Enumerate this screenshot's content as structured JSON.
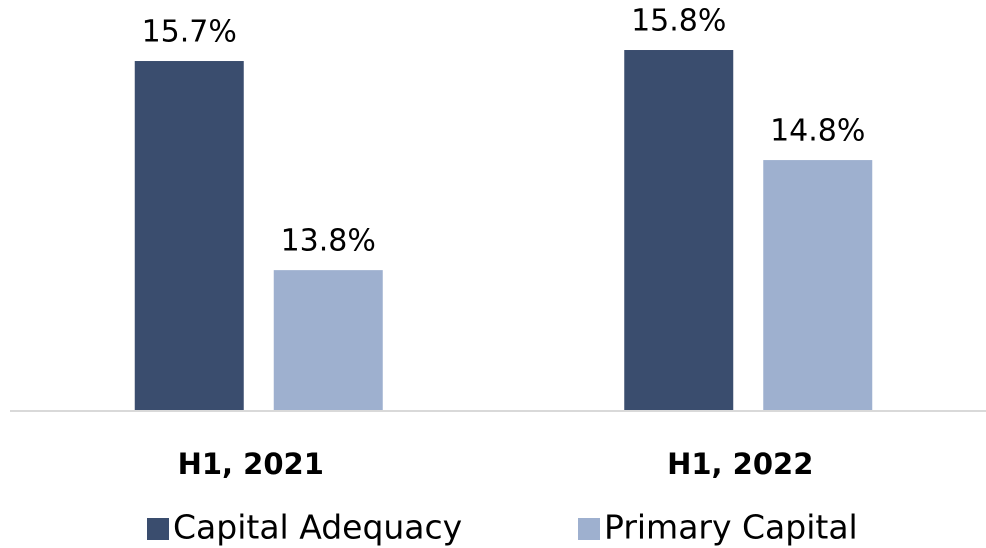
{
  "chart_data": {
    "type": "bar",
    "categories": [
      "H1, 2021",
      "H1, 2022"
    ],
    "series": [
      {
        "name": "Capital Adequacy",
        "color": "#3a4d6e",
        "values": [
          15.7,
          15.8
        ],
        "value_labels": [
          "15.7%",
          "15.8%"
        ]
      },
      {
        "name": "Primary Capital",
        "color": "#9eb0cf",
        "values": [
          13.8,
          14.8
        ],
        "value_labels": [
          "13.8%",
          "14.8%"
        ]
      }
    ],
    "ylim": [
      12.52,
      16.0
    ],
    "legend": "bottom"
  }
}
